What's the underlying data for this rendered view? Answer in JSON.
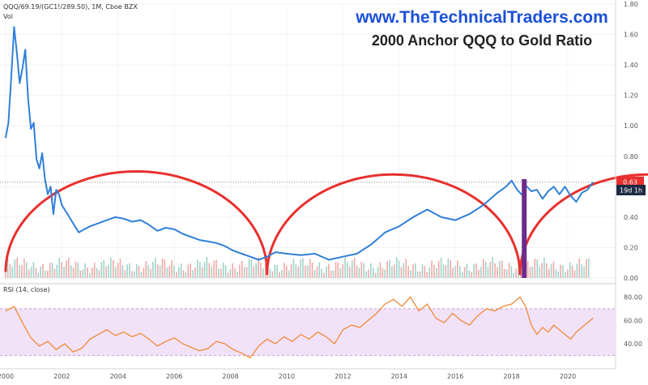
{
  "header": {
    "symbol_line": "QQQ/69.19/(GC1!/289.50), 1M, Cboe BZX",
    "vol_label": "Vol",
    "website": "www.TheTechnicalTraders.com",
    "title": "2000 Anchor QQQ to Gold Ratio"
  },
  "rsi_label": "RSI (14, close)",
  "badges": {
    "price": "0.63",
    "countdown": "19d 1h"
  },
  "chart_data": [
    {
      "type": "line",
      "series": [
        {
          "name": "QQQ/(GC1!/289.50)",
          "color": "#2f7fd8",
          "x": [
            2000.0,
            2000.1,
            2000.2,
            2000.3,
            2000.4,
            2000.5,
            2000.6,
            2000.7,
            2000.8,
            2000.9,
            2001.0,
            2001.1,
            2001.2,
            2001.3,
            2001.4,
            2001.5,
            2001.6,
            2001.7,
            2001.8,
            2001.9,
            2002.0,
            2002.2,
            2002.4,
            2002.6,
            2002.8,
            2003.0,
            2003.3,
            2003.6,
            2003.9,
            2004.2,
            2004.5,
            2004.8,
            2005.1,
            2005.4,
            2005.7,
            2006.0,
            2006.3,
            2006.6,
            2006.9,
            2007.2,
            2007.5,
            2007.8,
            2008.1,
            2008.4,
            2008.7,
            2009.0,
            2009.3,
            2009.6,
            2010.0,
            2010.5,
            2011.0,
            2011.5,
            2012.0,
            2012.5,
            2013.0,
            2013.5,
            2014.0,
            2014.5,
            2015.0,
            2015.5,
            2016.0,
            2016.5,
            2017.0,
            2017.5,
            2017.8,
            2018.0,
            2018.2,
            2018.4,
            2018.5,
            2018.7,
            2018.9,
            2019.1,
            2019.3,
            2019.5,
            2019.7,
            2019.9,
            2020.1,
            2020.3,
            2020.5,
            2020.7,
            2020.9
          ],
          "y": [
            0.92,
            1.02,
            1.32,
            1.65,
            1.48,
            1.28,
            1.38,
            1.5,
            1.18,
            0.98,
            1.02,
            0.78,
            0.72,
            0.82,
            0.65,
            0.55,
            0.6,
            0.42,
            0.58,
            0.55,
            0.48,
            0.42,
            0.36,
            0.3,
            0.32,
            0.34,
            0.36,
            0.38,
            0.4,
            0.39,
            0.37,
            0.38,
            0.35,
            0.31,
            0.33,
            0.32,
            0.29,
            0.27,
            0.25,
            0.24,
            0.23,
            0.21,
            0.18,
            0.16,
            0.14,
            0.12,
            0.14,
            0.17,
            0.16,
            0.15,
            0.16,
            0.12,
            0.14,
            0.16,
            0.22,
            0.3,
            0.34,
            0.4,
            0.45,
            0.4,
            0.38,
            0.42,
            0.48,
            0.56,
            0.6,
            0.64,
            0.58,
            0.54,
            0.61,
            0.57,
            0.58,
            0.52,
            0.57,
            0.6,
            0.55,
            0.6,
            0.54,
            0.5,
            0.56,
            0.58,
            0.63
          ]
        }
      ],
      "ylim": [
        0,
        1.8
      ],
      "yticks": [
        "0.00",
        "0.20",
        "0.40",
        "0.60",
        "0.80",
        "1.00",
        "1.20",
        "1.40",
        "1.60",
        "1.80"
      ],
      "ytick_values": [
        0,
        0.2,
        0.4,
        0.6,
        0.8,
        1.0,
        1.2,
        1.4,
        1.6,
        1.8
      ],
      "xlim": [
        1999.8,
        2021.7
      ],
      "xticks": [
        "2000",
        "2002",
        "2004",
        "2006",
        "2008",
        "2010",
        "2012",
        "2014",
        "2016",
        "2018",
        "2020"
      ],
      "xtick_values": [
        2000,
        2002,
        2004,
        2006,
        2008,
        2010,
        2012,
        2014,
        2016,
        2018,
        2020
      ],
      "reference_level": 0.63,
      "arcs": [
        {
          "x0": 2000.0,
          "x1": 2009.3,
          "peak": 0.7,
          "base": 0.04,
          "color": "#e8302e"
        },
        {
          "x0": 2009.3,
          "x1": 2018.3,
          "peak": 0.68,
          "base": 0.02,
          "color": "#e8302e"
        },
        {
          "x0": 2018.3,
          "x1": 2027.4,
          "peak": 0.68,
          "base": 0.02,
          "color": "#e8302e"
        }
      ],
      "marker": {
        "x": 2018.45,
        "y0": 0.0,
        "y1": 0.65,
        "color": "#6b2b8c"
      }
    },
    {
      "type": "line",
      "series": [
        {
          "name": "RSI",
          "color": "#ef8a3a",
          "x": [
            2000.0,
            2000.3,
            2000.6,
            2000.9,
            2001.2,
            2001.5,
            2001.8,
            2002.1,
            2002.4,
            2002.7,
            2003.0,
            2003.3,
            2003.6,
            2003.9,
            2004.2,
            2004.5,
            2004.8,
            2005.1,
            2005.4,
            2005.7,
            2006.0,
            2006.3,
            2006.6,
            2006.9,
            2007.2,
            2007.5,
            2007.8,
            2008.1,
            2008.4,
            2008.7,
            2009.0,
            2009.3,
            2009.6,
            2009.9,
            2010.2,
            2010.5,
            2010.8,
            2011.1,
            2011.4,
            2011.7,
            2012.0,
            2012.3,
            2012.6,
            2012.9,
            2013.2,
            2013.5,
            2013.8,
            2014.1,
            2014.4,
            2014.7,
            2015.0,
            2015.3,
            2015.6,
            2015.9,
            2016.2,
            2016.5,
            2016.8,
            2017.1,
            2017.4,
            2017.7,
            2018.0,
            2018.3,
            2018.5,
            2018.7,
            2018.9,
            2019.1,
            2019.3,
            2019.5,
            2019.7,
            2019.9,
            2020.1,
            2020.3,
            2020.5,
            2020.7,
            2020.9
          ],
          "y": [
            68,
            72,
            58,
            45,
            38,
            42,
            35,
            40,
            33,
            36,
            44,
            48,
            52,
            47,
            50,
            46,
            49,
            44,
            38,
            42,
            45,
            40,
            37,
            34,
            36,
            42,
            40,
            35,
            32,
            28,
            38,
            44,
            40,
            46,
            42,
            48,
            44,
            50,
            46,
            40,
            52,
            56,
            54,
            60,
            66,
            74,
            78,
            72,
            80,
            68,
            74,
            62,
            58,
            66,
            60,
            56,
            64,
            70,
            68,
            72,
            74,
            80,
            72,
            56,
            48,
            54,
            50,
            56,
            52,
            48,
            44,
            50,
            54,
            58,
            62
          ]
        }
      ],
      "ylim": [
        20,
        90
      ],
      "yticks": [
        "40.00",
        "60.00",
        "80.00"
      ],
      "ytick_values": [
        40,
        60,
        80
      ],
      "band": [
        30,
        70
      ]
    }
  ]
}
